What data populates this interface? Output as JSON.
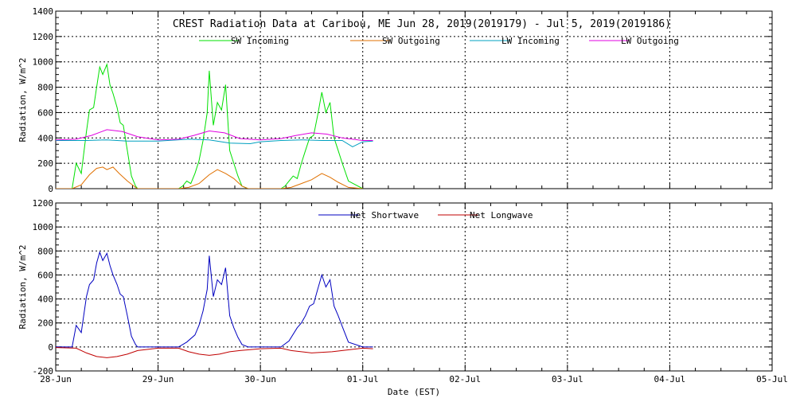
{
  "chart_data": [
    {
      "type": "line",
      "title": "CREST Radiation Data at Caribou, ME   Jun 28, 2019(2019179) - Jul  5, 2019(2019186)",
      "xlabel": "",
      "ylabel": "Radiation, W/m^2",
      "xlim": [
        0,
        7
      ],
      "ylim": [
        0,
        1400
      ],
      "yticks": [
        "0",
        "200",
        "400",
        "600",
        "800",
        "1000",
        "1200",
        "1400"
      ],
      "grid": true,
      "legend_position": "top",
      "series": [
        {
          "name": "SW Incoming",
          "color": "#00e000",
          "x": [
            0,
            0.16,
            0.2,
            0.25,
            0.3,
            0.33,
            0.37,
            0.4,
            0.43,
            0.46,
            0.5,
            0.53,
            0.56,
            0.6,
            0.63,
            0.66,
            0.7,
            0.74,
            0.78,
            0.8,
            1.0,
            1.2,
            1.24,
            1.28,
            1.32,
            1.36,
            1.4,
            1.44,
            1.48,
            1.5,
            1.54,
            1.58,
            1.62,
            1.66,
            1.7,
            1.74,
            1.78,
            1.82,
            1.88,
            2.0,
            2.2,
            2.24,
            2.28,
            2.32,
            2.36,
            2.4,
            2.44,
            2.48,
            2.52,
            2.56,
            2.6,
            2.64,
            2.68,
            2.72,
            2.76,
            2.8,
            2.86,
            3.0
          ],
          "y": [
            0,
            0,
            200,
            120,
            450,
            620,
            640,
            800,
            960,
            900,
            980,
            820,
            750,
            640,
            520,
            500,
            300,
            100,
            20,
            0,
            0,
            0,
            20,
            60,
            40,
            120,
            220,
            380,
            600,
            930,
            500,
            680,
            620,
            820,
            300,
            200,
            100,
            20,
            0,
            0,
            0,
            20,
            60,
            100,
            80,
            200,
            300,
            400,
            420,
            580,
            760,
            600,
            680,
            400,
            300,
            200,
            60,
            0
          ]
        },
        {
          "name": "SW Outgoing",
          "color": "#e07000",
          "x": [
            0,
            0.16,
            0.25,
            0.33,
            0.4,
            0.46,
            0.5,
            0.56,
            0.62,
            0.7,
            0.78,
            0.8,
            1.2,
            1.3,
            1.4,
            1.5,
            1.58,
            1.66,
            1.74,
            1.82,
            1.88,
            2.2,
            2.3,
            2.4,
            2.5,
            2.6,
            2.68,
            2.76,
            2.86,
            3.0
          ],
          "y": [
            0,
            0,
            30,
            110,
            160,
            170,
            150,
            170,
            120,
            60,
            10,
            0,
            0,
            10,
            40,
            110,
            150,
            120,
            80,
            20,
            0,
            0,
            10,
            40,
            70,
            120,
            90,
            50,
            10,
            0
          ]
        },
        {
          "name": "LW Incoming",
          "color": "#00a0c0",
          "x": [
            0,
            0.3,
            0.5,
            0.7,
            1.0,
            1.3,
            1.5,
            1.7,
            1.9,
            2.0,
            2.2,
            2.4,
            2.6,
            2.8,
            2.9,
            3.0,
            3.1
          ],
          "y": [
            380,
            380,
            385,
            375,
            375,
            390,
            385,
            360,
            355,
            370,
            380,
            385,
            380,
            380,
            330,
            370,
            375
          ]
        },
        {
          "name": "LW Outgoing",
          "color": "#e000e0",
          "x": [
            0,
            0.2,
            0.35,
            0.5,
            0.65,
            0.8,
            1.0,
            1.2,
            1.35,
            1.5,
            1.65,
            1.8,
            2.0,
            2.2,
            2.35,
            2.5,
            2.65,
            2.8,
            3.0,
            3.1
          ],
          "y": [
            385,
            390,
            420,
            465,
            450,
            410,
            385,
            390,
            420,
            455,
            440,
            395,
            385,
            395,
            420,
            440,
            430,
            400,
            380,
            380
          ]
        }
      ]
    },
    {
      "type": "line",
      "title": "",
      "xlabel": "Date (EST)",
      "ylabel": "Radiation, W/m^2",
      "xlim": [
        0,
        7
      ],
      "ylim": [
        -200,
        1200
      ],
      "yticks": [
        "-200",
        "0",
        "200",
        "400",
        "600",
        "800",
        "1000",
        "1200"
      ],
      "xticks": [
        "28-Jun",
        "29-Jun",
        "30-Jun",
        "01-Jul",
        "02-Jul",
        "03-Jul",
        "04-Jul",
        "05-Jul"
      ],
      "grid": true,
      "legend_position": "top",
      "series": [
        {
          "name": "Net Shortwave",
          "color": "#0000c0",
          "x": [
            0,
            0.16,
            0.2,
            0.25,
            0.3,
            0.33,
            0.37,
            0.4,
            0.43,
            0.46,
            0.5,
            0.53,
            0.56,
            0.6,
            0.63,
            0.66,
            0.7,
            0.74,
            0.78,
            0.8,
            1.0,
            1.2,
            1.28,
            1.36,
            1.4,
            1.44,
            1.48,
            1.5,
            1.54,
            1.58,
            1.62,
            1.66,
            1.7,
            1.74,
            1.78,
            1.82,
            1.88,
            2.0,
            2.2,
            2.28,
            2.36,
            2.4,
            2.44,
            2.48,
            2.52,
            2.56,
            2.6,
            2.64,
            2.68,
            2.72,
            2.76,
            2.8,
            2.86,
            3.0,
            3.1
          ],
          "y": [
            0,
            0,
            180,
            120,
            420,
            520,
            560,
            700,
            790,
            720,
            780,
            680,
            600,
            520,
            440,
            420,
            260,
            90,
            20,
            0,
            0,
            0,
            40,
            100,
            180,
            300,
            480,
            760,
            420,
            560,
            520,
            660,
            260,
            160,
            80,
            20,
            0,
            0,
            0,
            50,
            160,
            200,
            260,
            340,
            360,
            480,
            600,
            500,
            560,
            340,
            260,
            170,
            40,
            0,
            0
          ]
        },
        {
          "name": "Net Longwave",
          "color": "#c00000",
          "x": [
            0,
            0.2,
            0.3,
            0.4,
            0.5,
            0.6,
            0.7,
            0.8,
            1.0,
            1.2,
            1.3,
            1.4,
            1.5,
            1.6,
            1.7,
            1.8,
            2.0,
            2.2,
            2.3,
            2.4,
            2.5,
            2.6,
            2.7,
            2.8,
            2.9,
            3.0,
            3.1
          ],
          "y": [
            -5,
            -10,
            -50,
            -80,
            -90,
            -80,
            -60,
            -30,
            -10,
            -10,
            -40,
            -60,
            -70,
            -60,
            -40,
            -30,
            -15,
            -10,
            -30,
            -40,
            -50,
            -45,
            -40,
            -30,
            -20,
            -10,
            -15
          ]
        }
      ]
    }
  ]
}
